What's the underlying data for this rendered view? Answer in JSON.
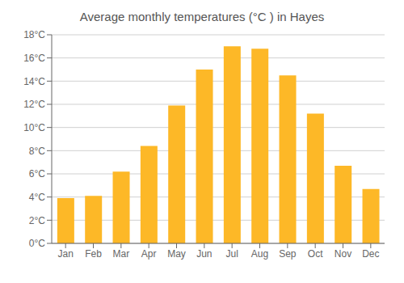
{
  "chart_data": {
    "type": "bar",
    "title": "Average monthly temperatures (°C ) in Hayes",
    "categories": [
      "Jan",
      "Feb",
      "Mar",
      "Apr",
      "May",
      "Jun",
      "Jul",
      "Aug",
      "Sep",
      "Oct",
      "Nov",
      "Dec"
    ],
    "values": [
      3.9,
      4.1,
      6.2,
      8.4,
      11.9,
      15.0,
      17.0,
      16.8,
      14.5,
      11.2,
      6.7,
      4.7
    ],
    "color": "#FDB827",
    "ylim": [
      0,
      18
    ],
    "yticks": [
      {
        "value": 0,
        "label": "0°C"
      },
      {
        "value": 2,
        "label": "2°C"
      },
      {
        "value": 4,
        "label": "4°C"
      },
      {
        "value": 6,
        "label": "6°C"
      },
      {
        "value": 8,
        "label": "8°C"
      },
      {
        "value": 10,
        "label": "10°C"
      },
      {
        "value": 12,
        "label": "12°C"
      },
      {
        "value": 14,
        "label": "14°C"
      },
      {
        "value": 16,
        "label": "16°C"
      },
      {
        "value": 18,
        "label": "18°C"
      }
    ],
    "grid": true
  }
}
